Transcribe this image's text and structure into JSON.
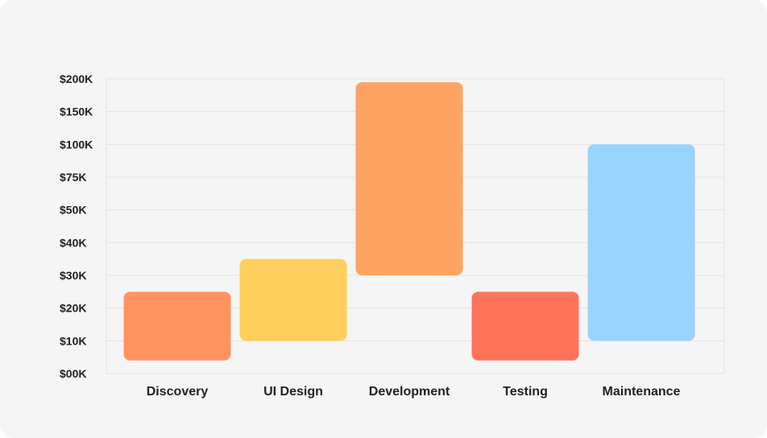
{
  "chart_data": {
    "type": "bar",
    "title": "",
    "xlabel": "",
    "ylabel": "",
    "y_tick_labels": [
      "$00K",
      "$10K",
      "$20K",
      "$30K",
      "$40K",
      "$50K",
      "$75K",
      "$100K",
      "$150K",
      "$200K"
    ],
    "y_tick_values": [
      0,
      10000,
      20000,
      30000,
      40000,
      50000,
      75000,
      100000,
      150000,
      200000
    ],
    "categories": [
      "Discovery",
      "UI Design",
      "Development",
      "Testing",
      "Maintenance"
    ],
    "ranges": [
      {
        "low": 4000,
        "high": 25000
      },
      {
        "low": 10000,
        "high": 35000
      },
      {
        "low": 30000,
        "high": 195000
      },
      {
        "low": 4000,
        "high": 25000
      },
      {
        "low": 10000,
        "high": 100000
      }
    ],
    "colors": [
      "#ff9460",
      "#ffce5c",
      "#ffa460",
      "#ff735c",
      "#99d3ff"
    ],
    "grid": true,
    "legend": "none"
  }
}
